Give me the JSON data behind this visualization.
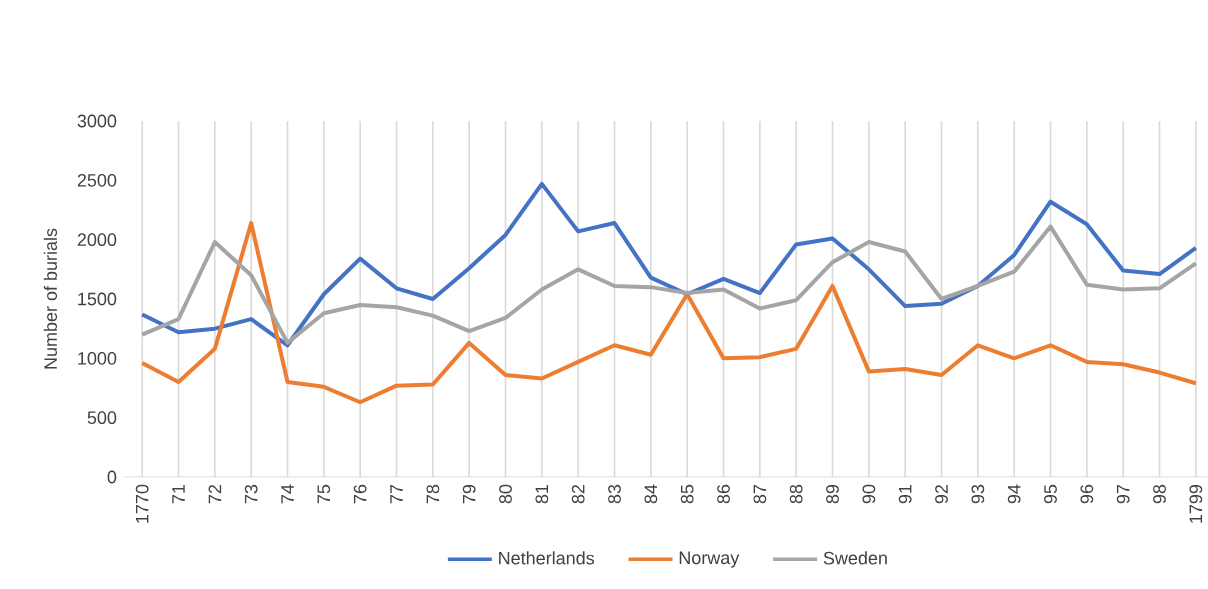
{
  "chart_data": {
    "type": "line",
    "ylabel": "Number of burials",
    "categories": [
      "1770",
      "71",
      "72",
      "73",
      "74",
      "75",
      "76",
      "77",
      "78",
      "79",
      "80",
      "81",
      "82",
      "83",
      "84",
      "85",
      "86",
      "87",
      "88",
      "89",
      "90",
      "91",
      "92",
      "93",
      "94",
      "95",
      "96",
      "97",
      "98",
      "1799"
    ],
    "series": [
      {
        "name": "Netherlands",
        "color": "#4472c4",
        "values": [
          1370,
          1220,
          1250,
          1330,
          1110,
          1540,
          1840,
          1590,
          1500,
          1760,
          2040,
          2470,
          2070,
          2140,
          1680,
          1540,
          1670,
          1550,
          1960,
          2010,
          1750,
          1440,
          1460,
          1610,
          1870,
          2320,
          2130,
          1740,
          1710,
          1930
        ]
      },
      {
        "name": "Norway",
        "color": "#ed7d31",
        "values": [
          960,
          800,
          1080,
          2140,
          800,
          760,
          630,
          770,
          780,
          1130,
          860,
          830,
          970,
          1110,
          1030,
          1540,
          1000,
          1010,
          1080,
          1610,
          890,
          910,
          860,
          1110,
          1000,
          1110,
          970,
          950,
          880,
          790
        ]
      },
      {
        "name": "Sweden",
        "color": "#a5a5a5",
        "values": [
          1200,
          1330,
          1980,
          1700,
          1130,
          1380,
          1450,
          1430,
          1360,
          1230,
          1340,
          1580,
          1750,
          1610,
          1600,
          1550,
          1580,
          1420,
          1490,
          1810,
          1980,
          1900,
          1500,
          1610,
          1730,
          2110,
          1620,
          1580,
          1590,
          1800
        ]
      }
    ],
    "ylim": [
      0,
      3000
    ],
    "yticks": [
      0,
      500,
      1000,
      1500,
      2000,
      2500,
      3000
    ],
    "grid": "x",
    "legend": "bottom",
    "marker": "none",
    "line_style": "solid"
  }
}
